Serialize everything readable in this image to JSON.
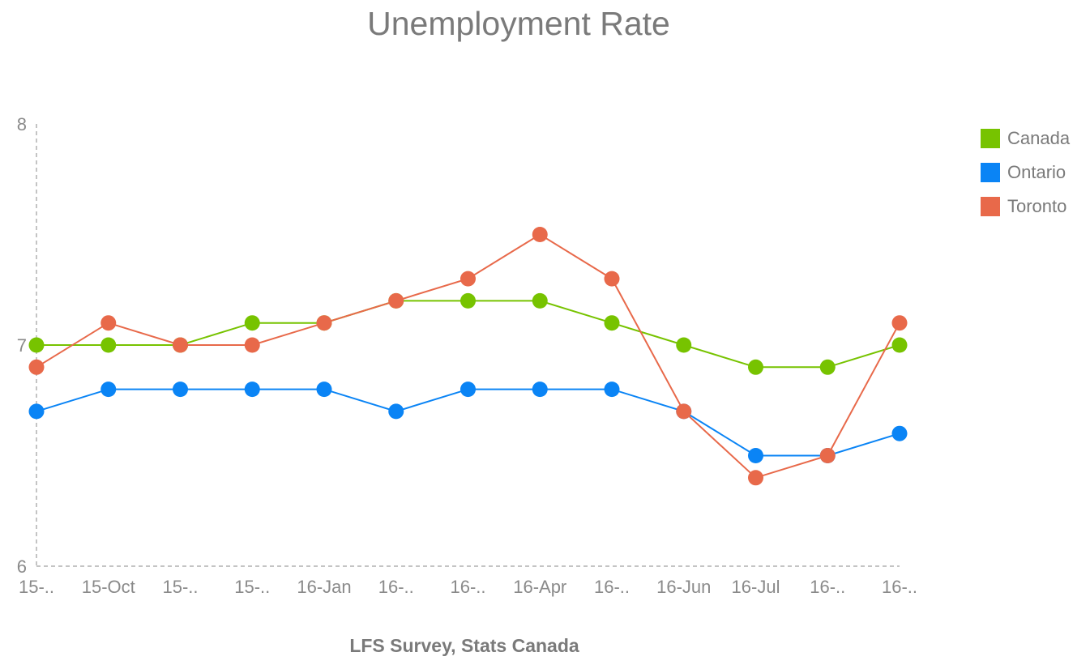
{
  "chart_data": {
    "type": "line",
    "title": "Unemployment Rate",
    "xlabel": "LFS Survey, Stats Canada",
    "ylabel": "",
    "ylim": [
      6,
      8
    ],
    "yticks": [
      "6",
      "7",
      "8"
    ],
    "grid": false,
    "legend_position": "top-right",
    "categories": [
      "15-..",
      "15-Oct",
      "15-..",
      "15-..",
      "16-Jan",
      "16-..",
      "16-..",
      "16-Apr",
      "16-..",
      "16-Jun",
      "16-Jul",
      "16-..",
      "16-.."
    ],
    "series": [
      {
        "name": "Canada",
        "color": "#77c300",
        "values": [
          7.0,
          7.0,
          7.0,
          7.1,
          7.1,
          7.2,
          7.2,
          7.2,
          7.1,
          7.0,
          6.9,
          6.9,
          7.0
        ]
      },
      {
        "name": "Ontario",
        "color": "#0a84f5",
        "values": [
          6.7,
          6.8,
          6.8,
          6.8,
          6.8,
          6.7,
          6.8,
          6.8,
          6.8,
          6.7,
          6.5,
          6.5,
          6.6
        ]
      },
      {
        "name": "Toronto",
        "color": "#e8694a",
        "values": [
          6.9,
          7.1,
          7.0,
          7.0,
          7.1,
          7.2,
          7.3,
          7.5,
          7.3,
          6.7,
          6.4,
          6.5,
          7.1
        ]
      }
    ]
  }
}
